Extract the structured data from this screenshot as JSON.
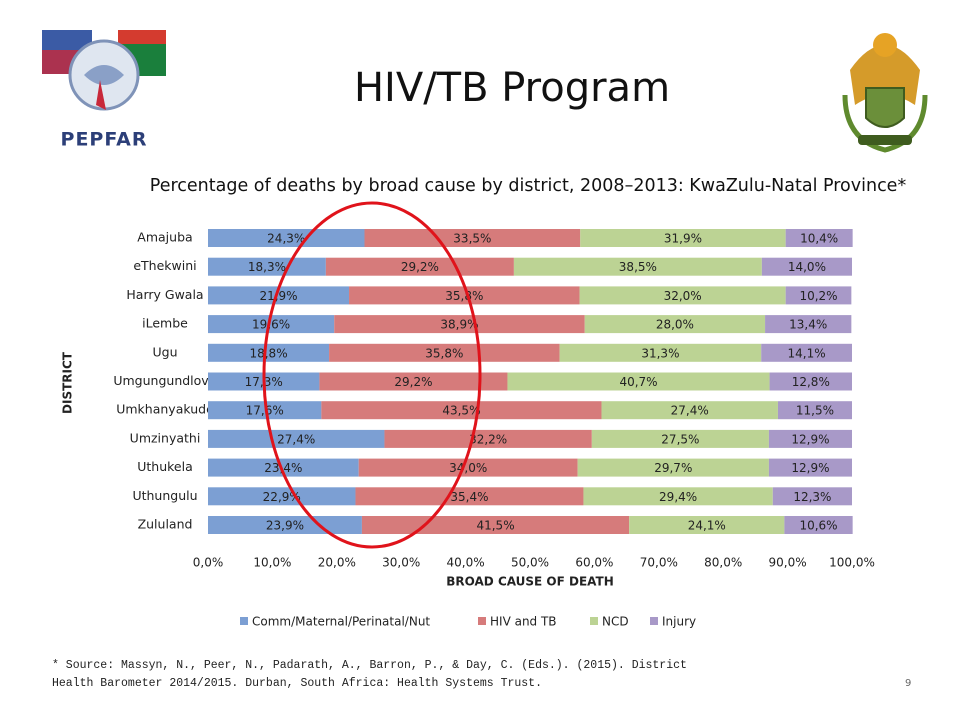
{
  "title": "HIV/TB Program",
  "logo_text": "PEPFAR",
  "slide_number": "9",
  "footnote": [
    "* Source: Massyn, N., Peer, N., Padarath, A., Barron, P., & Day, C. (Eds.). (2015). District",
    "Health Barometer 2014/2015. Durban, South Africa: Health Systems Trust."
  ],
  "chart_data": {
    "type": "stacked-bar-horizontal",
    "title": "Percentage of deaths by broad cause by district, 2008–2013: KwaZulu-Natal Province*",
    "x_label": "BROAD CAUSE OF DEATH",
    "y_label": "DISTRICT",
    "categories": [
      "Amajuba",
      "eThekwini",
      "Harry Gwala",
      "iLembe",
      "Ugu",
      "Umgungundlovu",
      "Umkhanyakude",
      "Umzinyathi",
      "Uthukela",
      "Uthungulu",
      "Zululand"
    ],
    "xlim": [
      0,
      100
    ],
    "xticks": [
      {
        "value": 0,
        "label": "0,0%"
      },
      {
        "value": 10,
        "label": "10,0%"
      },
      {
        "value": 20,
        "label": "20,0%"
      },
      {
        "value": 30,
        "label": "30,0%"
      },
      {
        "value": 40,
        "label": "40,0%"
      },
      {
        "value": 50,
        "label": "50,0%"
      },
      {
        "value": 60,
        "label": "60,0%"
      },
      {
        "value": 70,
        "label": "70,0%"
      },
      {
        "value": 80,
        "label": "80,0%"
      },
      {
        "value": 90,
        "label": "90,0%"
      },
      {
        "value": 100,
        "label": "100,0%"
      }
    ],
    "grid": false,
    "legend": "bottom",
    "series": [
      {
        "name": "Comm/Maternal/Perinatal/Nut",
        "color": "#7c9fd3",
        "values": [
          24.3,
          18.3,
          21.9,
          19.6,
          18.8,
          17.3,
          17.6,
          27.4,
          23.4,
          22.9,
          23.9
        ],
        "value_labels": [
          "24,3%",
          "18,3%",
          "21,9%",
          "19,6%",
          "18,8%",
          "17,3%",
          "17,6%",
          "27,4%",
          "23,4%",
          "22,9%",
          "23,9%"
        ]
      },
      {
        "name": "HIV and TB",
        "color": "#d67b7b",
        "values": [
          33.5,
          29.2,
          35.8,
          38.9,
          35.8,
          29.2,
          43.5,
          32.2,
          34.0,
          35.4,
          41.5
        ],
        "value_labels": [
          "33,5%",
          "29,2%",
          "35,8%",
          "38,9%",
          "35,8%",
          "29,2%",
          "43,5%",
          "32,2%",
          "34,0%",
          "35,4%",
          "41,5%"
        ]
      },
      {
        "name": "NCD",
        "color": "#bcd394",
        "values": [
          31.9,
          38.5,
          32.0,
          28.0,
          31.3,
          40.7,
          27.4,
          27.5,
          29.7,
          29.4,
          24.1
        ],
        "value_labels": [
          "31,9%",
          "38,5%",
          "32,0%",
          "28,0%",
          "31,3%",
          "40,7%",
          "27,4%",
          "27,5%",
          "29,7%",
          "29,4%",
          "24,1%"
        ]
      },
      {
        "name": "Injury",
        "color": "#a899c8",
        "values": [
          10.4,
          14.0,
          10.2,
          13.4,
          14.1,
          12.8,
          11.5,
          12.9,
          12.9,
          12.3,
          10.6
        ],
        "value_labels": [
          "10,4%",
          "14,0%",
          "10,2%",
          "13,4%",
          "14,1%",
          "12,8%",
          "11,5%",
          "12,9%",
          "12,9%",
          "12,3%",
          "10,6%"
        ]
      }
    ]
  }
}
